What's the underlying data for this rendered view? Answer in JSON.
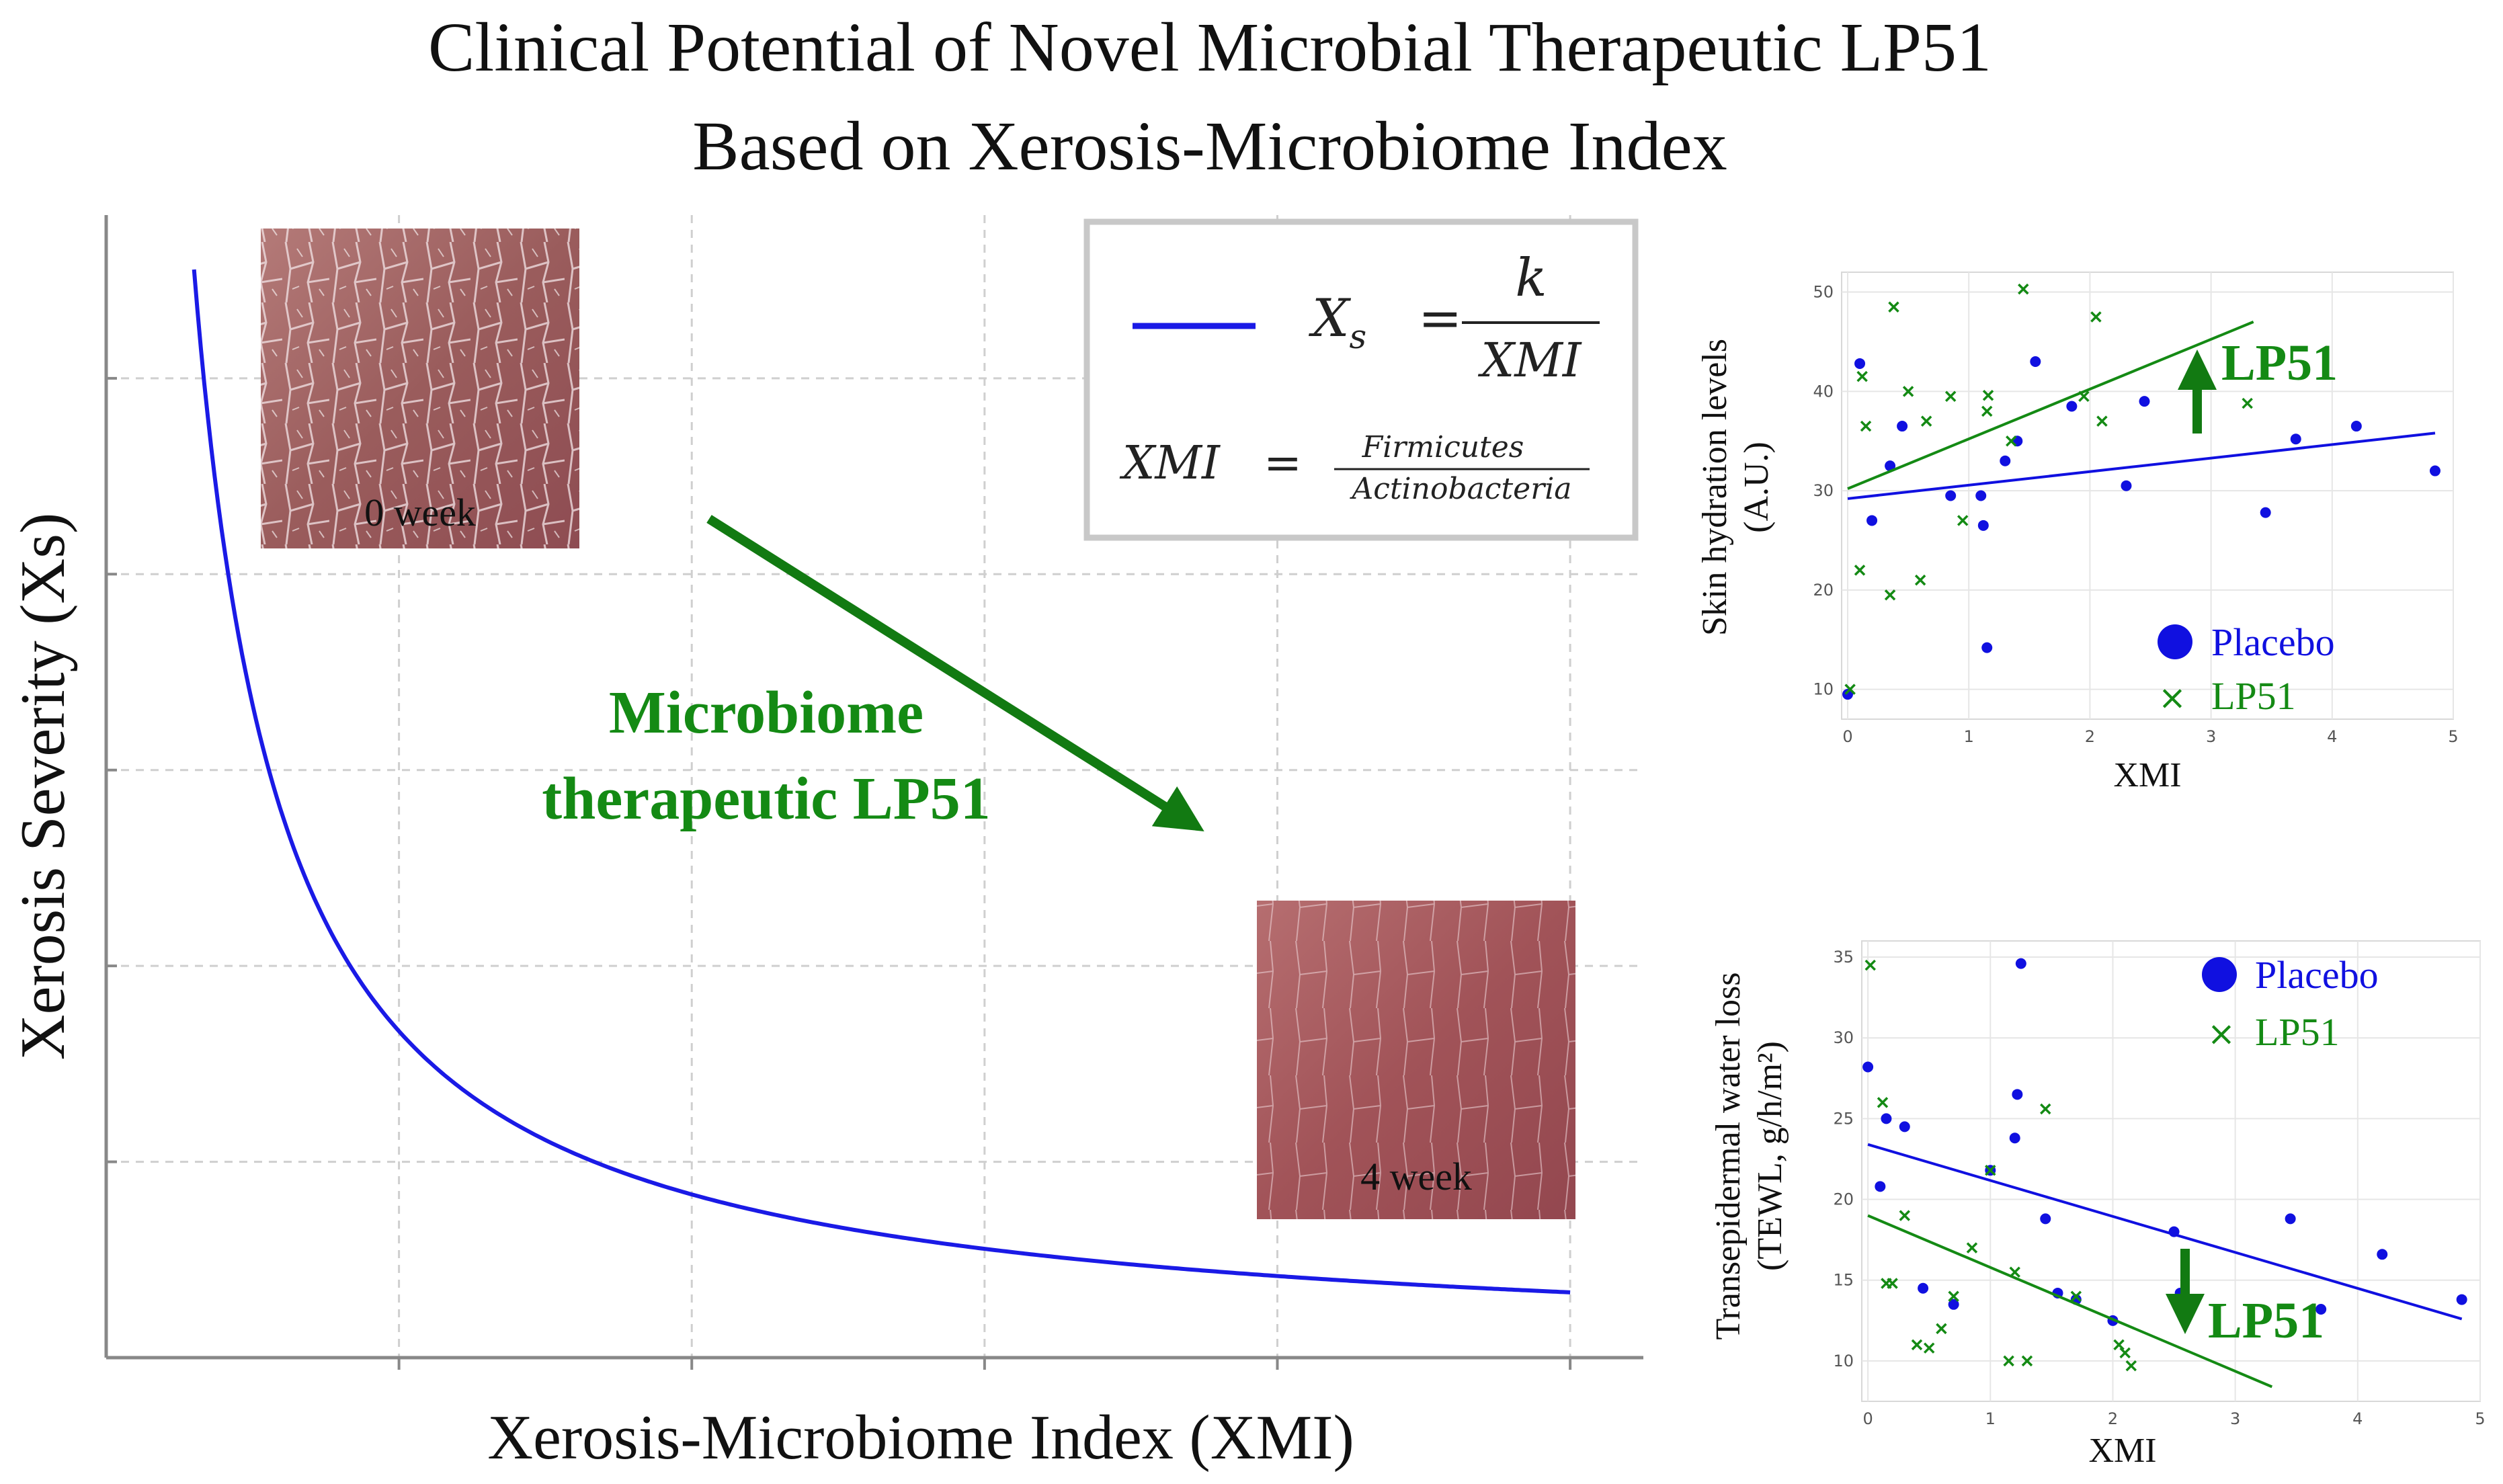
{
  "title": {
    "line1": "Clinical Potential of Novel Microbial Therapeutic LP51",
    "line2": "Based on Xerosis-Microbiome Index"
  },
  "colors": {
    "placebo": "#1010e0",
    "lp51": "#148a14",
    "curve": "#1a1ae6",
    "arrow": "#127a12",
    "axis": "#888888",
    "grid": "#cfcfcf"
  },
  "main_chart": {
    "chart_data": {
      "type": "line",
      "title": "",
      "xlabel": "Xerosis-Microbiome Index (XMI)",
      "ylabel": "Xerosis Severity (Xs)",
      "x": [
        0.6,
        0.8,
        1.0,
        1.25,
        1.5,
        2.0,
        2.5,
        3.0,
        3.5,
        4.0,
        5.0,
        6.0,
        7.0,
        8.0,
        9.0,
        10.0
      ],
      "y": [
        20.0,
        15.0,
        12.0,
        9.6,
        8.0,
        6.0,
        4.8,
        4.0,
        3.43,
        3.0,
        2.4,
        2.0,
        1.71,
        1.5,
        1.33,
        1.2
      ],
      "xlim": [
        0,
        10.5
      ],
      "ylim": [
        0,
        21
      ],
      "grid": true,
      "legend": {
        "position": "top-right",
        "label": "Xs = k / XMI"
      }
    },
    "formula": {
      "lhs_main": "X",
      "lhs_sub": "s",
      "equals": "=",
      "numerator": "k",
      "denominator": "XMI",
      "xmi_lhs": "XMI",
      "xmi_num": "Firmicutes",
      "xmi_den": "Actinobacteria"
    },
    "annotation": {
      "line1": "Microbiome",
      "line2": "therapeutic LP51"
    },
    "images": {
      "before_label": "0 week",
      "after_label": "4 week"
    }
  },
  "hydration_chart": {
    "chart_data": {
      "type": "scatter",
      "xlabel": "XMI",
      "ylabel_line1": "Skin hydration levels",
      "ylabel_line2": "(A.U.)",
      "xlim": [
        -0.05,
        5
      ],
      "ylim": [
        7,
        52
      ],
      "x_ticks": [
        0,
        1,
        2,
        3,
        4,
        5
      ],
      "y_ticks": [
        10,
        20,
        30,
        40,
        50
      ],
      "series": [
        {
          "name": "Placebo",
          "marker": "dot",
          "points": [
            [
              0.0,
              9.5
            ],
            [
              0.1,
              42.8
            ],
            [
              0.2,
              27.0
            ],
            [
              0.35,
              32.5
            ],
            [
              0.45,
              36.5
            ],
            [
              0.85,
              29.5
            ],
            [
              1.1,
              29.5
            ],
            [
              1.12,
              26.5
            ],
            [
              1.15,
              14.2
            ],
            [
              1.3,
              33.0
            ],
            [
              1.4,
              35.0
            ],
            [
              1.55,
              43.0
            ],
            [
              1.85,
              38.5
            ],
            [
              2.3,
              30.5
            ],
            [
              2.45,
              39.0
            ],
            [
              3.45,
              27.8
            ],
            [
              3.7,
              35.2
            ],
            [
              4.2,
              36.5
            ],
            [
              4.85,
              32.0
            ]
          ],
          "fit": [
            [
              0.0,
              29.2
            ],
            [
              4.85,
              35.8
            ]
          ]
        },
        {
          "name": "LP51",
          "marker": "x",
          "points": [
            [
              0.02,
              10.0
            ],
            [
              0.1,
              22.0
            ],
            [
              0.12,
              41.5
            ],
            [
              0.15,
              36.5
            ],
            [
              0.35,
              19.5
            ],
            [
              0.38,
              48.5
            ],
            [
              0.5,
              40.0
            ],
            [
              0.6,
              21.0
            ],
            [
              0.65,
              37.0
            ],
            [
              0.85,
              39.5
            ],
            [
              0.95,
              27.0
            ],
            [
              1.15,
              38.0
            ],
            [
              1.16,
              39.6
            ],
            [
              1.35,
              35.0
            ],
            [
              1.45,
              50.3
            ],
            [
              1.95,
              39.5
            ],
            [
              2.05,
              47.5
            ],
            [
              2.1,
              37.0
            ],
            [
              3.3,
              38.8
            ]
          ],
          "fit": [
            [
              0.0,
              30.2
            ],
            [
              3.35,
              47.0
            ]
          ]
        }
      ],
      "legend": {
        "position": "bottom-right",
        "entries": [
          "Placebo",
          "LP51"
        ]
      },
      "annotation": "LP51",
      "annotation_direction": "up"
    }
  },
  "tewl_chart": {
    "chart_data": {
      "type": "scatter",
      "xlabel": "XMI",
      "ylabel_line1": "Transepidermal water loss",
      "ylabel_line2": "(TEWL, g/h/m²)",
      "xlim": [
        -0.05,
        5
      ],
      "ylim": [
        7.5,
        36
      ],
      "x_ticks": [
        0,
        1,
        2,
        3,
        4,
        5
      ],
      "y_ticks": [
        10,
        15,
        20,
        25,
        30,
        35
      ],
      "series": [
        {
          "name": "Placebo",
          "marker": "dot",
          "points": [
            [
              0.0,
              28.2
            ],
            [
              0.1,
              20.8
            ],
            [
              0.15,
              25.0
            ],
            [
              0.3,
              24.5
            ],
            [
              0.45,
              14.5
            ],
            [
              0.7,
              13.5
            ],
            [
              1.0,
              21.8
            ],
            [
              1.2,
              23.8
            ],
            [
              1.22,
              26.5
            ],
            [
              1.25,
              34.6
            ],
            [
              1.45,
              18.8
            ],
            [
              1.55,
              14.2
            ],
            [
              1.7,
              13.8
            ],
            [
              2.0,
              12.5
            ],
            [
              2.5,
              18.0
            ],
            [
              2.55,
              14.2
            ],
            [
              3.45,
              18.8
            ],
            [
              3.7,
              13.2
            ],
            [
              4.2,
              16.6
            ],
            [
              4.85,
              13.8
            ]
          ],
          "fit": [
            [
              0.0,
              23.4
            ],
            [
              4.85,
              12.6
            ]
          ]
        },
        {
          "name": "LP51",
          "marker": "x",
          "points": [
            [
              0.02,
              34.5
            ],
            [
              0.12,
              26.0
            ],
            [
              0.15,
              14.8
            ],
            [
              0.2,
              14.8
            ],
            [
              0.3,
              19.0
            ],
            [
              0.4,
              11.0
            ],
            [
              0.5,
              10.8
            ],
            [
              0.6,
              12.0
            ],
            [
              0.7,
              14.0
            ],
            [
              0.85,
              17.0
            ],
            [
              1.0,
              21.8
            ],
            [
              1.15,
              10.0
            ],
            [
              1.2,
              15.5
            ],
            [
              1.3,
              10.0
            ],
            [
              1.45,
              25.6
            ],
            [
              1.7,
              14.0
            ],
            [
              2.05,
              11.0
            ],
            [
              2.1,
              10.5
            ],
            [
              2.15,
              9.7
            ]
          ],
          "fit": [
            [
              0.0,
              19.0
            ],
            [
              3.3,
              8.4
            ]
          ]
        }
      ],
      "legend": {
        "position": "top-right",
        "entries": [
          "Placebo",
          "LP51"
        ]
      },
      "annotation": "LP51",
      "annotation_direction": "down"
    }
  }
}
